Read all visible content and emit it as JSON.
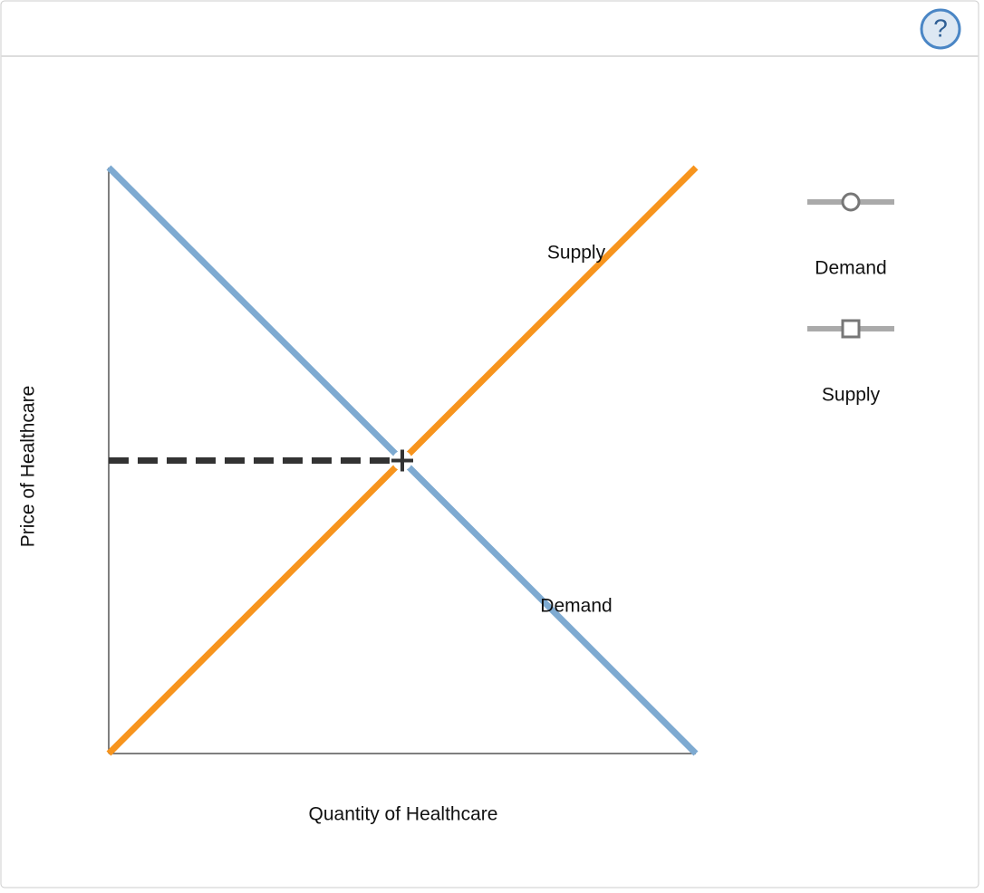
{
  "toolbar": {
    "help": "?"
  },
  "chart_data": {
    "type": "line",
    "x_label": "Quantity of Healthcare",
    "y_label": "Price of Healthcare",
    "xlim": [
      0,
      10
    ],
    "ylim": [
      0,
      10
    ],
    "x": [
      0,
      10
    ],
    "series": [
      {
        "name": "Demand",
        "color": "#7eaad1",
        "values": [
          10,
          0
        ]
      },
      {
        "name": "Supply",
        "color": "#f7941d",
        "values": [
          0,
          10
        ]
      }
    ],
    "equilibrium": {
      "x": 5,
      "y": 5
    }
  }
}
